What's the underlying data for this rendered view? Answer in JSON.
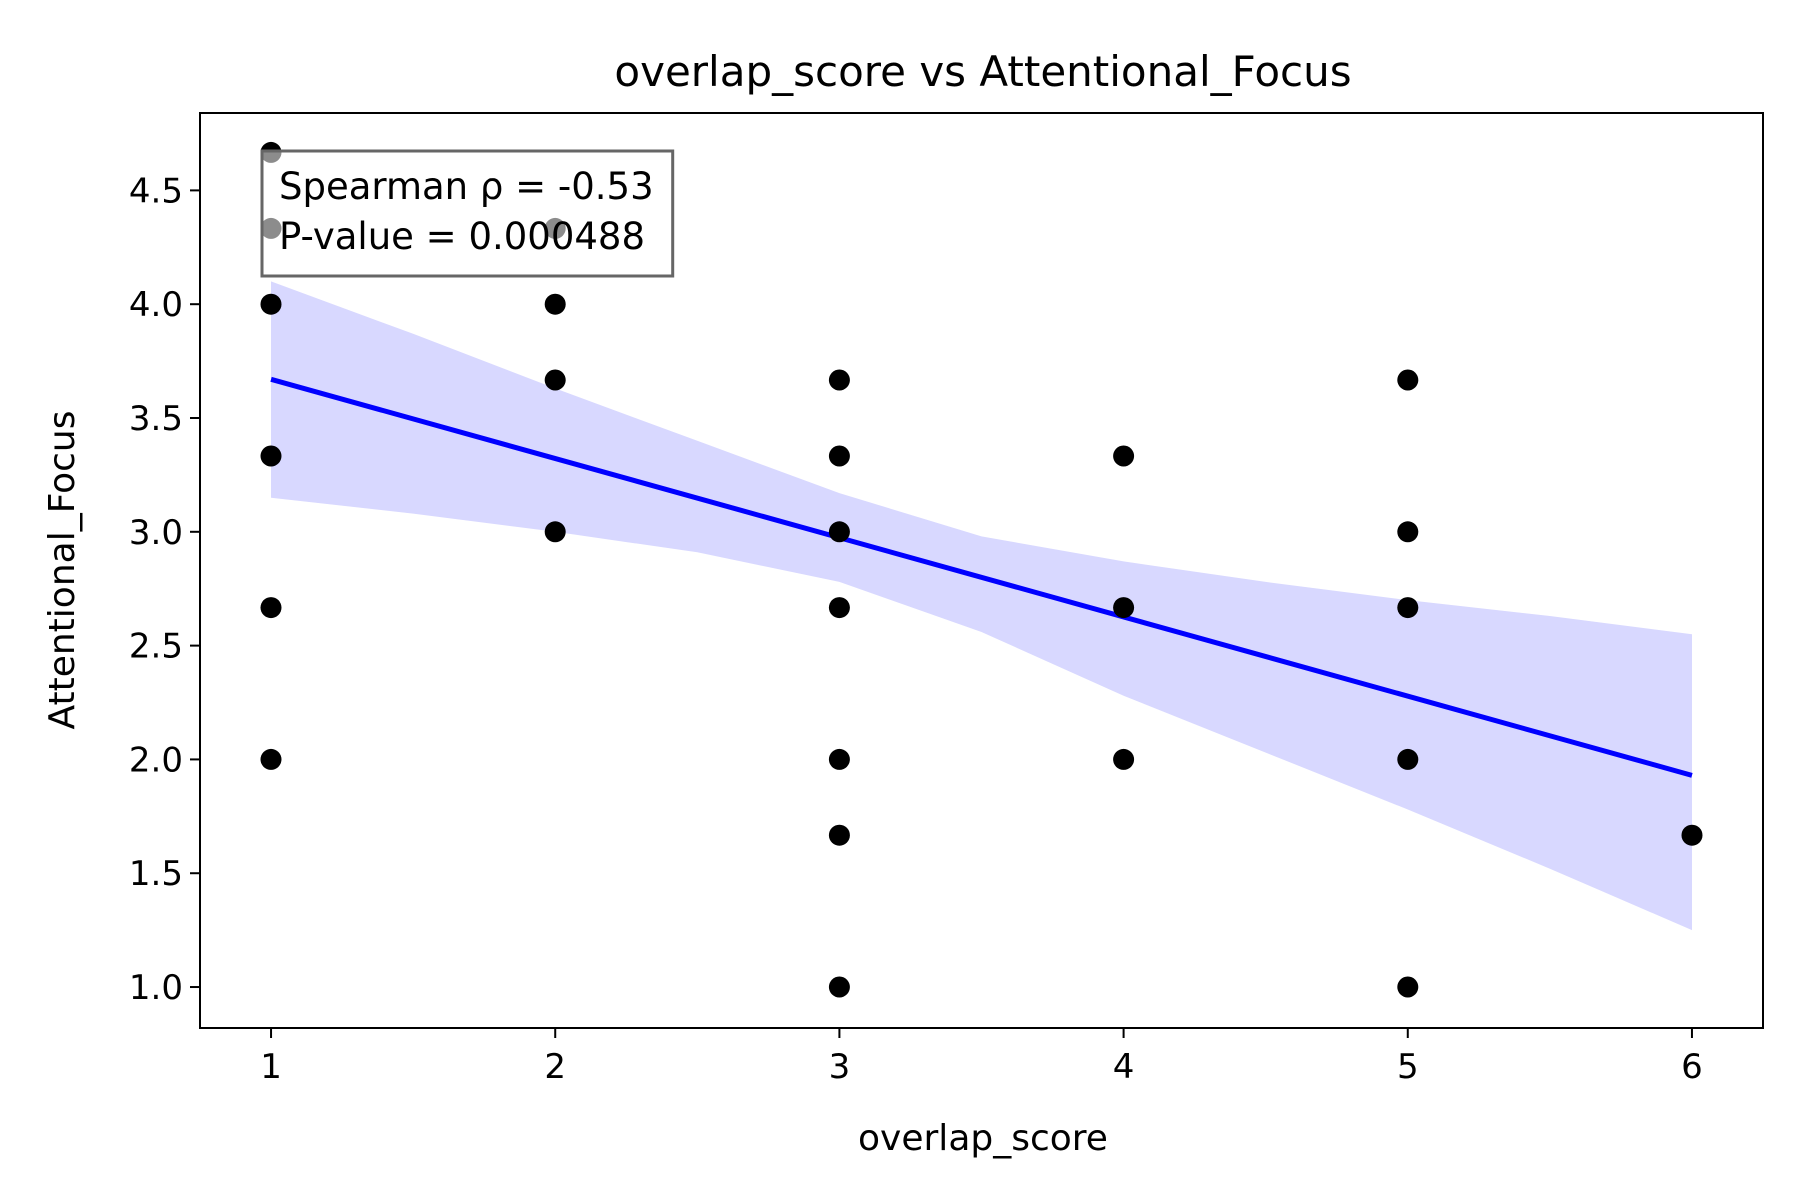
{
  "chart_data": {
    "type": "scatter",
    "title": "overlap_score vs Attentional_Focus",
    "xlabel": "overlap_score",
    "ylabel": "Attentional_Focus",
    "xlim": [
      0.75,
      6.25
    ],
    "ylim": [
      0.82,
      4.84
    ],
    "xticks": [
      1,
      2,
      3,
      4,
      5,
      6
    ],
    "yticks": [
      1.0,
      1.5,
      2.0,
      2.5,
      3.0,
      3.5,
      4.0,
      4.5
    ],
    "xtick_labels": [
      "1",
      "2",
      "3",
      "4",
      "5",
      "6"
    ],
    "ytick_labels": [
      "1.0",
      "1.5",
      "2.0",
      "2.5",
      "3.0",
      "3.5",
      "4.0",
      "4.5"
    ],
    "grid": false,
    "points": [
      {
        "x": 1,
        "y": 4.667
      },
      {
        "x": 1,
        "y": 4.333
      },
      {
        "x": 1,
        "y": 4.0
      },
      {
        "x": 1,
        "y": 3.333
      },
      {
        "x": 1,
        "y": 2.667
      },
      {
        "x": 1,
        "y": 2.0
      },
      {
        "x": 2,
        "y": 4.333
      },
      {
        "x": 2,
        "y": 4.0
      },
      {
        "x": 2,
        "y": 3.667
      },
      {
        "x": 2,
        "y": 3.0
      },
      {
        "x": 3,
        "y": 3.667
      },
      {
        "x": 3,
        "y": 3.333
      },
      {
        "x": 3,
        "y": 3.0
      },
      {
        "x": 3,
        "y": 2.667
      },
      {
        "x": 3,
        "y": 2.0
      },
      {
        "x": 3,
        "y": 1.667
      },
      {
        "x": 3,
        "y": 1.0
      },
      {
        "x": 4,
        "y": 3.333
      },
      {
        "x": 4,
        "y": 2.667
      },
      {
        "x": 4,
        "y": 2.0
      },
      {
        "x": 5,
        "y": 3.667
      },
      {
        "x": 5,
        "y": 3.0
      },
      {
        "x": 5,
        "y": 2.667
      },
      {
        "x": 5,
        "y": 2.0
      },
      {
        "x": 5,
        "y": 1.0
      },
      {
        "x": 6,
        "y": 1.667
      }
    ],
    "regression_line": {
      "x": [
        1,
        6
      ],
      "y": [
        3.67,
        1.93
      ],
      "color": "#0000ff"
    },
    "confidence_band": {
      "x": [
        1.0,
        1.5,
        2.0,
        2.5,
        3.0,
        3.5,
        4.0,
        4.5,
        5.0,
        5.5,
        6.0
      ],
      "lower": [
        3.15,
        3.08,
        3.0,
        2.91,
        2.78,
        2.56,
        2.28,
        2.03,
        1.78,
        1.52,
        1.25
      ],
      "upper": [
        4.1,
        3.87,
        3.63,
        3.4,
        3.17,
        2.98,
        2.87,
        2.78,
        2.7,
        2.63,
        2.55
      ],
      "color": "#d8d8ff"
    },
    "marker_color": "#000000",
    "annotation": {
      "lines": [
        "Spearman ρ = -0.53",
        "P-value = 0.000488"
      ],
      "location": "top-left",
      "border_color": "#666666"
    }
  }
}
